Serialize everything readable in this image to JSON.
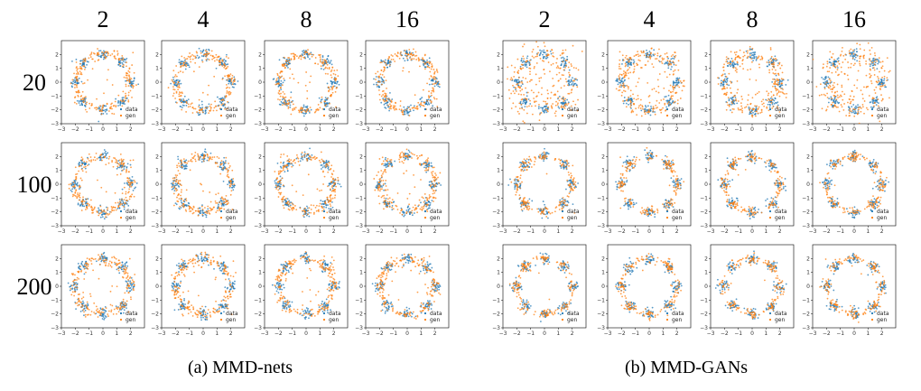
{
  "figure": {
    "panels": [
      {
        "caption": "(a) MMD-nets",
        "column_labels": [
          "2",
          "4",
          "8",
          "16"
        ],
        "row_labels": [
          "20",
          "100",
          "200"
        ]
      },
      {
        "caption": "(b) MMD-GANs",
        "column_labels": [
          "2",
          "4",
          "8",
          "16"
        ],
        "row_labels": []
      }
    ],
    "colors": {
      "data": "#1f77b4",
      "gen": "#ff7f0e"
    }
  },
  "chart_data": {
    "type": "scatter",
    "description_of_grid": "Two 3x4 grids of scatter subplots; columns 2,4,8,16; rows 20,100,200",
    "series": [
      {
        "name": "data",
        "color": "#1f77b4",
        "modes": [
          [
            2,
            0
          ],
          [
            1.414,
            1.414
          ],
          [
            0,
            2
          ],
          [
            -1.414,
            1.414
          ],
          [
            -2,
            0
          ],
          [
            -1.414,
            -1.414
          ],
          [
            0,
            -2
          ],
          [
            1.414,
            -1.414
          ]
        ],
        "std": 0.2
      },
      {
        "name": "gen",
        "color": "#ff7f0e"
      }
    ],
    "xlim": [
      -3,
      3
    ],
    "ylim": [
      -3,
      3
    ],
    "xticks": [
      "−3",
      "−2",
      "−1",
      "0",
      "1",
      "2"
    ],
    "yticks": [
      "2",
      "1",
      "0",
      "−1",
      "−2",
      "−3"
    ],
    "legend": [
      "data",
      "gen"
    ],
    "legend_placement": "lower-right"
  }
}
